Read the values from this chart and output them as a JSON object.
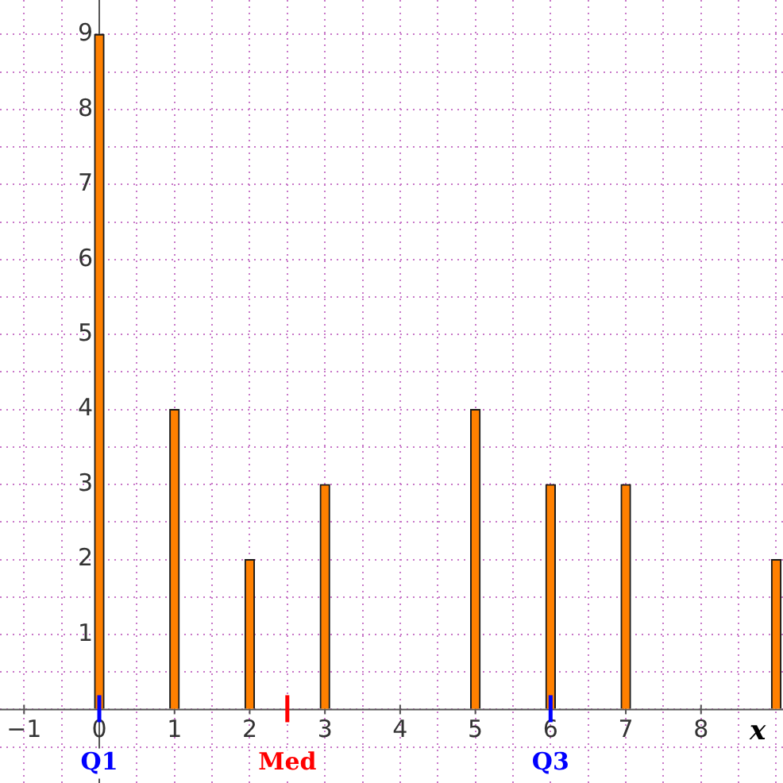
{
  "chart_data": {
    "type": "bar",
    "x": [
      0,
      1,
      2,
      3,
      5,
      6,
      7,
      9
    ],
    "values": [
      9,
      4,
      2,
      3,
      4,
      3,
      3,
      2
    ],
    "color": "#ff8000",
    "xlabel": "x",
    "xlim": [
      -1.32,
      9.09
    ],
    "ylim": [
      -0.98,
      9.46
    ],
    "xticks": [
      {
        "value": -1,
        "label": "−1"
      },
      {
        "value": -0.5,
        "label": null
      },
      0,
      {
        "value": 0.5,
        "label": null
      },
      1,
      {
        "value": 1.5,
        "label": null
      },
      2,
      {
        "value": 2.5,
        "label": null
      },
      3,
      {
        "value": 3.5,
        "label": null
      },
      4,
      {
        "value": 4.5,
        "label": null
      },
      5,
      {
        "value": 5.5,
        "label": null
      },
      6,
      {
        "value": 6.5,
        "label": null
      },
      7,
      {
        "value": 7.5,
        "label": null
      },
      8,
      {
        "value": 8.5,
        "label": null
      },
      {
        "value": 9,
        "label": null
      }
    ],
    "yticks": [
      {
        "value": -0.5,
        "label": null
      },
      {
        "value": 0,
        "label": null
      },
      {
        "value": 0.5,
        "label": null
      },
      1,
      {
        "value": 1.5,
        "label": null
      },
      2,
      {
        "value": 2.5,
        "label": null
      },
      3,
      {
        "value": 3.5,
        "label": null
      },
      4,
      {
        "value": 4.5,
        "label": null
      },
      5,
      {
        "value": 5.5,
        "label": null
      },
      6,
      {
        "value": 6.5,
        "label": null
      },
      7,
      {
        "value": 7.5,
        "label": null
      },
      8,
      {
        "value": 8.5,
        "label": null
      },
      9
    ],
    "ref_lines": [
      {
        "axis": "x",
        "value": 0,
        "label": "Q1",
        "color": "#0000ff"
      },
      {
        "axis": "x",
        "value": 2.5,
        "label": "Med",
        "color": "#ff0000"
      },
      {
        "axis": "x",
        "value": 6,
        "label": "Q3",
        "color": "#0000ff"
      }
    ],
    "grid": true,
    "legend": false
  }
}
